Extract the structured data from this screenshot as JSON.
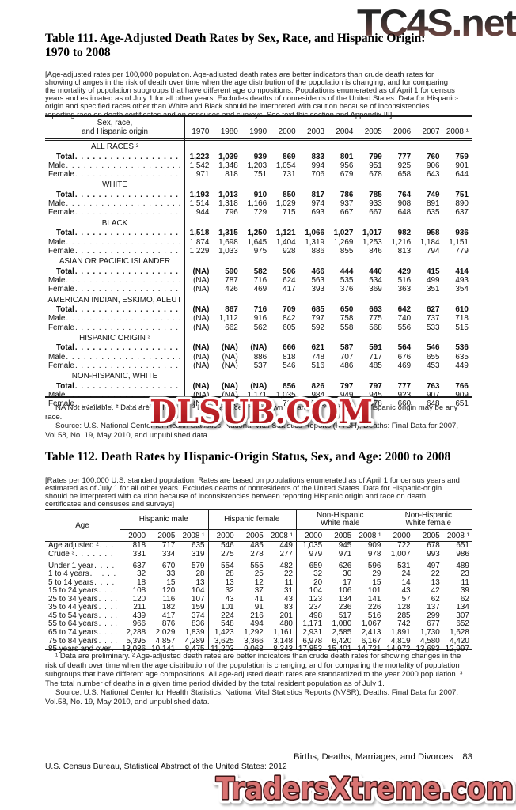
{
  "watermarks": {
    "top": "TC4S.net",
    "middle": "DLSUB.COM",
    "bottom": "TradersXtreme.com",
    "top_color_start": "#262626",
    "top_color_end": "#8a544e",
    "middle_color_top": "#d63439",
    "middle_color_bottom": "#9f1016",
    "bottom_fill": "#d97372",
    "bottom_outline": "#3f1315"
  },
  "table111": {
    "title_line1": "Table 111. Age-Adjusted Death Rates by Sex, Race, and Hispanic Origin:",
    "title_line2": "1970 to 2008",
    "note": "[Age-adjusted rates per 100,000 population. Age-adjusted death rates are better indicators than crude death rates for showing changes in the risk of death over time when the age distribution of the population is changing, and for comparing the mortality of population subgroups that have different age compositions. Populations enumerated as of April 1 for census years and estimated as of July 1 for all other years. Excludes deaths of nonresidents of the United States. Data for Hispanic-origin and specified races other than White and Black should be interpreted with caution because of inconsistencies  reporting race on death certificates and on censuses and surveys. See text this section and Appendix III]",
    "stub_header": [
      "Sex, race,",
      "and Hispanic origin"
    ],
    "years": [
      "1970",
      "1980",
      "1990",
      "2000",
      "2003",
      "2004",
      "2005",
      "2006",
      "2007",
      "2008 ¹"
    ],
    "sections": [
      {
        "name": "ALL RACES ²",
        "rows": [
          {
            "label": "Total",
            "bold": true,
            "values": [
              "1,223",
              "1,039",
              "939",
              "869",
              "833",
              "801",
              "799",
              "777",
              "760",
              "759"
            ]
          },
          {
            "label": "Male",
            "bold": false,
            "values": [
              "1,542",
              "1,348",
              "1,203",
              "1,054",
              "994",
              "956",
              "951",
              "925",
              "906",
              "901"
            ]
          },
          {
            "label": "Female",
            "bold": false,
            "values": [
              "971",
              "818",
              "751",
              "731",
              "706",
              "679",
              "678",
              "658",
              "643",
              "644"
            ]
          }
        ]
      },
      {
        "name": "WHITE",
        "rows": [
          {
            "label": "Total",
            "bold": true,
            "values": [
              "1,193",
              "1,013",
              "910",
              "850",
              "817",
              "786",
              "785",
              "764",
              "749",
              "751"
            ]
          },
          {
            "label": "Male",
            "bold": false,
            "values": [
              "1,514",
              "1,318",
              "1,166",
              "1,029",
              "974",
              "937",
              "933",
              "908",
              "891",
              "890"
            ]
          },
          {
            "label": "Female",
            "bold": false,
            "values": [
              "944",
              "796",
              "729",
              "715",
              "693",
              "667",
              "667",
              "648",
              "635",
              "637"
            ]
          }
        ]
      },
      {
        "name": "BLACK",
        "rows": [
          {
            "label": "Total",
            "bold": true,
            "values": [
              "1,518",
              "1,315",
              "1,250",
              "1,121",
              "1,066",
              "1,027",
              "1,017",
              "982",
              "958",
              "936"
            ]
          },
          {
            "label": "Male",
            "bold": false,
            "values": [
              "1,874",
              "1,698",
              "1,645",
              "1,404",
              "1,319",
              "1,269",
              "1,253",
              "1,216",
              "1,184",
              "1,151"
            ]
          },
          {
            "label": "Female",
            "bold": false,
            "values": [
              "1,229",
              "1,033",
              "975",
              "928",
              "886",
              "855",
              "846",
              "813",
              "794",
              "779"
            ]
          }
        ]
      },
      {
        "name": "ASIAN OR PACIFIC ISLANDER",
        "rows": [
          {
            "label": "Total",
            "bold": true,
            "values": [
              "(NA)",
              "590",
              "582",
              "506",
              "466",
              "444",
              "440",
              "429",
              "415",
              "414"
            ]
          },
          {
            "label": "Male",
            "bold": false,
            "values": [
              "(NA)",
              "787",
              "716",
              "624",
              "563",
              "535",
              "534",
              "516",
              "499",
              "493"
            ]
          },
          {
            "label": "Female",
            "bold": false,
            "values": [
              "(NA)",
              "426",
              "469",
              "417",
              "393",
              "376",
              "369",
              "363",
              "351",
              "354"
            ]
          }
        ]
      },
      {
        "name": "AMERICAN INDIAN, ESKIMO, ALEUT",
        "rows": [
          {
            "label": "Total",
            "bold": true,
            "values": [
              "(NA)",
              "867",
              "716",
              "709",
              "685",
              "650",
              "663",
              "642",
              "627",
              "610"
            ]
          },
          {
            "label": "Male",
            "bold": false,
            "values": [
              "(NA)",
              "1,112",
              "916",
              "842",
              "797",
              "758",
              "775",
              "740",
              "737",
              "718"
            ]
          },
          {
            "label": "Female",
            "bold": false,
            "values": [
              "(NA)",
              "662",
              "562",
              "605",
              "592",
              "558",
              "568",
              "556",
              "533",
              "515"
            ]
          }
        ]
      },
      {
        "name": "HISPANIC ORIGIN ³",
        "rows": [
          {
            "label": "Total",
            "bold": true,
            "values": [
              "(NA)",
              "(NA)",
              "(NA)",
              "666",
              "621",
              "587",
              "591",
              "564",
              "546",
              "536"
            ]
          },
          {
            "label": "Male",
            "bold": false,
            "values": [
              "(NA)",
              "(NA)",
              "886",
              "818",
              "748",
              "707",
              "717",
              "676",
              "655",
              "635"
            ]
          },
          {
            "label": "Female",
            "bold": false,
            "values": [
              "(NA)",
              "(NA)",
              "537",
              "546",
              "516",
              "486",
              "485",
              "469",
              "453",
              "449"
            ]
          }
        ]
      },
      {
        "name": "NON-HISPANIC, WHITE",
        "rows": [
          {
            "label": "Total",
            "bold": true,
            "values": [
              "(NA)",
              "(NA)",
              "(NA)",
              "856",
              "826",
              "797",
              "797",
              "777",
              "763",
              "766"
            ]
          },
          {
            "label": "Male",
            "bold": false,
            "values": [
              "(NA)",
              "(NA)",
              "1,171",
              "1,035",
              "984",
              "949",
              "945",
              "923",
              "907",
              "909"
            ]
          },
          {
            "label": "Female",
            "bold": false,
            "values": [
              "(NA)",
              "(NA)",
              "735",
              "722",
              "702",
              "678",
              "678",
              "660",
              "648",
              "651"
            ]
          }
        ]
      }
    ],
    "footnote": "NA Not available. ¹ Data are preliminary. ² Includes races not shown separately. ³ Persons of Hispanic origin may be any race.",
    "source": "Source: U.S. National Center for Health Statistics, National Vital Statistics Reports (NVSH), Deaths: Final Data for 2007, Vol.58, No. 19, May 2010, and unpublished data."
  },
  "table112": {
    "title": "Table 112. Death Rates by Hispanic-Origin Status, Sex, and Age: 2000 to 2008",
    "note": "[Rates per 100,000 U.S. standard population. Rates are based on populations enumerated as of April 1 for census years and estimated as of July 1 for all other years. Excludes deaths of nonresidents of the United States. Data for Hispanic-origin should be interpreted with caution because of inconsistencies between reporting Hispanic origin and race on death certificates and censuses and surveys]",
    "stub_header": "Age",
    "groups": [
      "Hispanic male",
      "Hispanic female",
      "Non-Hispanic\nWhite male",
      "Non-Hispanic\nWhite female"
    ],
    "group_years": [
      "2000",
      "2005",
      "2008 ¹"
    ],
    "rows": [
      {
        "label": "Age adjusted ²",
        "values": [
          "818",
          "717",
          "635",
          "546",
          "485",
          "449",
          "1,035",
          "945",
          "909",
          "722",
          "678",
          "651"
        ],
        "gap_after": false
      },
      {
        "label": "Crude ³",
        "values": [
          "331",
          "334",
          "319",
          "275",
          "278",
          "277",
          "979",
          "971",
          "978",
          "1,007",
          "993",
          "986"
        ],
        "gap_after": true
      },
      {
        "label": "Under 1 year",
        "values": [
          "637",
          "670",
          "579",
          "554",
          "555",
          "482",
          "659",
          "626",
          "596",
          "531",
          "497",
          "489"
        ],
        "gap_after": false
      },
      {
        "label": "1 to 4 years",
        "values": [
          "32",
          "33",
          "28",
          "28",
          "25",
          "22",
          "32",
          "30",
          "29",
          "24",
          "22",
          "23"
        ],
        "gap_after": false
      },
      {
        "label": "5 to 14 years",
        "values": [
          "18",
          "15",
          "13",
          "13",
          "12",
          "11",
          "20",
          "17",
          "15",
          "14",
          "13",
          "11"
        ],
        "gap_after": false
      },
      {
        "label": "15 to 24 years",
        "values": [
          "108",
          "120",
          "104",
          "32",
          "37",
          "31",
          "104",
          "106",
          "101",
          "43",
          "42",
          "39"
        ],
        "gap_after": false
      },
      {
        "label": "25 to 34 years",
        "values": [
          "120",
          "116",
          "107",
          "43",
          "41",
          "43",
          "123",
          "134",
          "141",
          "57",
          "62",
          "62"
        ],
        "gap_after": false
      },
      {
        "label": "35 to 44 years",
        "values": [
          "211",
          "182",
          "159",
          "101",
          "91",
          "83",
          "234",
          "236",
          "226",
          "128",
          "137",
          "134"
        ],
        "gap_after": false
      },
      {
        "label": "45 to 54 years",
        "values": [
          "439",
          "417",
          "374",
          "224",
          "216",
          "201",
          "498",
          "517",
          "516",
          "285",
          "299",
          "307"
        ],
        "gap_after": false
      },
      {
        "label": "55 to 64 years",
        "values": [
          "966",
          "876",
          "836",
          "548",
          "494",
          "480",
          "1,171",
          "1,080",
          "1,067",
          "742",
          "677",
          "652"
        ],
        "gap_after": false
      },
      {
        "label": "65 to 74 years",
        "values": [
          "2,288",
          "2,029",
          "1,839",
          "1,423",
          "1,292",
          "1,161",
          "2,931",
          "2,585",
          "2,413",
          "1,891",
          "1,730",
          "1,628"
        ],
        "gap_after": false
      },
      {
        "label": "75 to 84 years",
        "values": [
          "5,395",
          "4,857",
          "4,289",
          "3,625",
          "3,366",
          "3,148",
          "6,978",
          "6,420",
          "6,167",
          "4,819",
          "4,580",
          "4,420"
        ],
        "gap_after": false
      },
      {
        "label": "85 years and over",
        "values": [
          "13,086",
          "10,141",
          "8,475",
          "11,203",
          "9,068",
          "8,343",
          "17,853",
          "15,401",
          "14,721",
          "14,972",
          "13,683",
          "12,997"
        ],
        "gap_after": false
      }
    ],
    "footnote": "¹ Data are preliminary. ² Age-adjusted death rates are better indicators than crude death rates for showing changes in the risk of death over time when the age distribution of the population is changing, and for comparing the mortality of population subgroups that have different age compositions. All age-adjusted death rates are standardized to the year 2000 population. ³ The total number of deaths in a given time period divided by the total resident population as of July 1.",
    "source": "Source: U.S. National Center for Health Statistics, National Vital Statistics Reports (NVSR), Deaths: Final Data for 2007, Vol.58, No. 19, May 2010, and unpublished data."
  },
  "footer": {
    "section_title": "Births, Deaths, Marriages, and Divorces",
    "page_number": "83",
    "imprint": "U.S. Census Bureau, Statistical Abstract of the United States: 2012"
  }
}
